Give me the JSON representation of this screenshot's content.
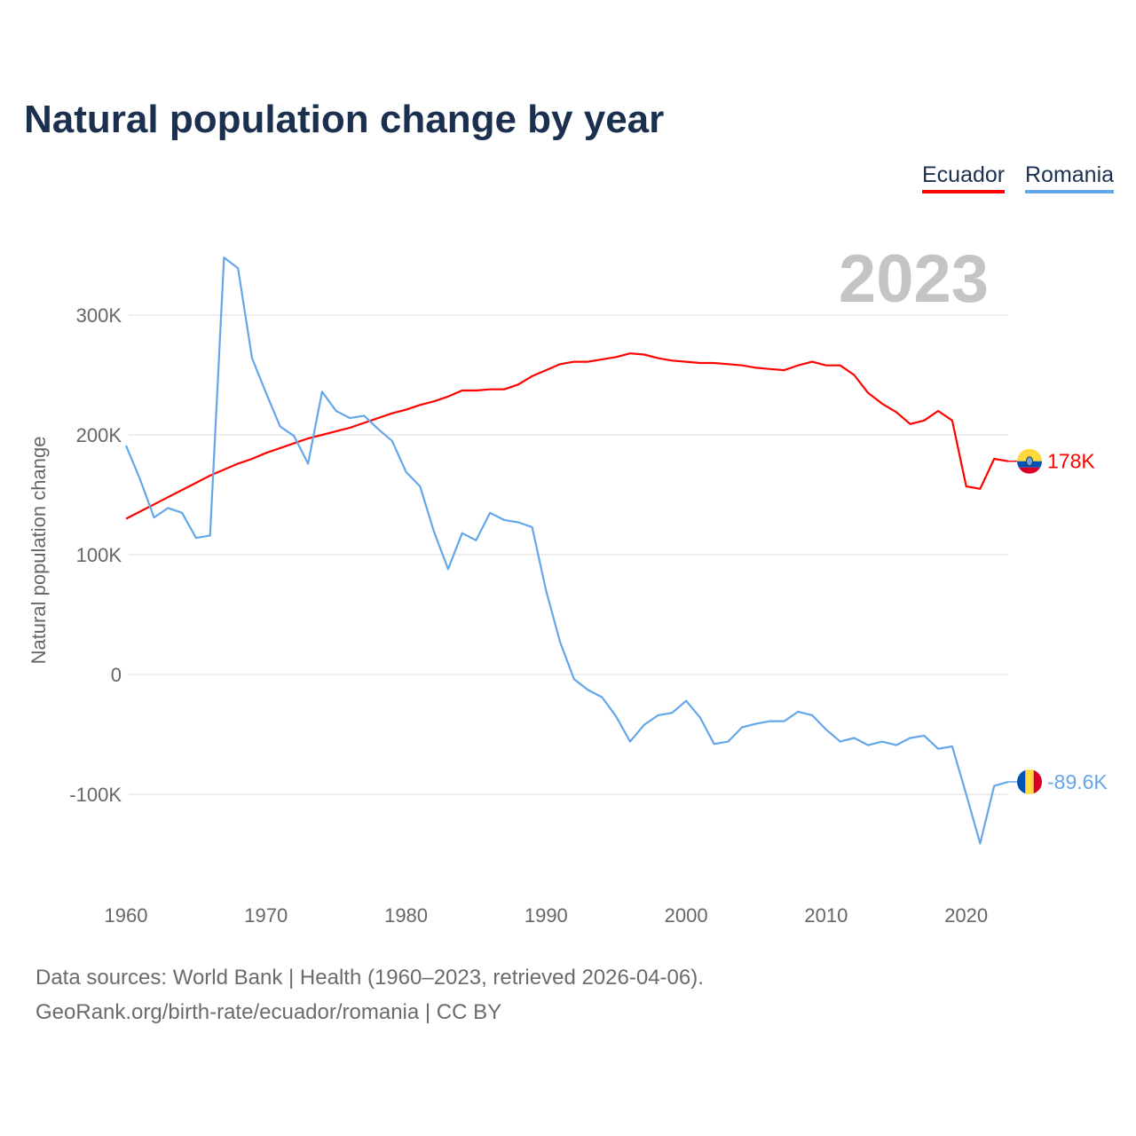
{
  "chart_data": {
    "type": "line",
    "title": "Natural population change by year",
    "xlabel": "",
    "ylabel": "Natural population change",
    "xlim": [
      1960,
      2023
    ],
    "ylim": [
      -150000,
      350000
    ],
    "x_ticks": [
      1960,
      1970,
      1980,
      1990,
      2000,
      2010,
      2020
    ],
    "x_tick_labels": [
      "1960",
      "1970",
      "1980",
      "1990",
      "2000",
      "2010",
      "2020"
    ],
    "y_ticks": [
      -100000,
      0,
      100000,
      200000,
      300000
    ],
    "y_tick_labels": [
      "-100K",
      "0",
      "100K",
      "200K",
      "300K"
    ],
    "grid": true,
    "legend_placement": "top-right",
    "year_watermark": "2023",
    "x": [
      1960,
      1961,
      1962,
      1963,
      1964,
      1965,
      1966,
      1967,
      1968,
      1969,
      1970,
      1971,
      1972,
      1973,
      1974,
      1975,
      1976,
      1977,
      1978,
      1979,
      1980,
      1981,
      1982,
      1983,
      1984,
      1985,
      1986,
      1987,
      1988,
      1989,
      1990,
      1991,
      1992,
      1993,
      1994,
      1995,
      1996,
      1997,
      1998,
      1999,
      2000,
      2001,
      2002,
      2003,
      2004,
      2005,
      2006,
      2007,
      2008,
      2009,
      2010,
      2011,
      2012,
      2013,
      2014,
      2015,
      2016,
      2017,
      2018,
      2019,
      2020,
      2021,
      2022,
      2023
    ],
    "series": [
      {
        "name": "Ecuador",
        "color": "#ff0000",
        "end_label": "178K",
        "flag": "ecuador-flag",
        "values": [
          130000,
          136000,
          142000,
          148000,
          154000,
          160000,
          166000,
          171000,
          176000,
          180000,
          185000,
          189000,
          193000,
          197000,
          200000,
          203000,
          206000,
          210000,
          214000,
          218000,
          221000,
          225000,
          228000,
          232000,
          237000,
          237000,
          238000,
          238000,
          242000,
          249000,
          254000,
          259000,
          261000,
          261000,
          263000,
          265000,
          268000,
          267000,
          264000,
          262000,
          261000,
          260000,
          260000,
          259000,
          258000,
          256000,
          255000,
          254000,
          258000,
          261000,
          258000,
          258000,
          250000,
          235000,
          226000,
          219000,
          209000,
          212000,
          220000,
          212000,
          157000,
          155000,
          180000,
          178000
        ]
      },
      {
        "name": "Romania",
        "color": "#63a6ea",
        "end_label": "-89.6K",
        "flag": "romania-flag",
        "values": [
          191000,
          163000,
          131000,
          139000,
          135000,
          114000,
          116000,
          348000,
          339000,
          264000,
          235000,
          207000,
          199000,
          176000,
          236000,
          220000,
          214000,
          216000,
          205000,
          195000,
          169000,
          157000,
          119000,
          88000,
          118000,
          112000,
          135000,
          129000,
          127000,
          123000,
          70000,
          27000,
          -4000,
          -13000,
          -19000,
          -35000,
          -56000,
          -42000,
          -34000,
          -32000,
          -22000,
          -36000,
          -58000,
          -56000,
          -44000,
          -41000,
          -39000,
          -39000,
          -31000,
          -34000,
          -46000,
          -56000,
          -53000,
          -59000,
          -56000,
          -59000,
          -53000,
          -51000,
          -62000,
          -60000,
          -100000,
          -141000,
          -93000,
          -89600
        ]
      }
    ]
  },
  "footer": {
    "sources": "Data sources: World Bank | Health (1960–2023, retrieved 2026-04-06).",
    "link": "GeoRank.org/birth-rate/ecuador/romania | CC BY"
  }
}
